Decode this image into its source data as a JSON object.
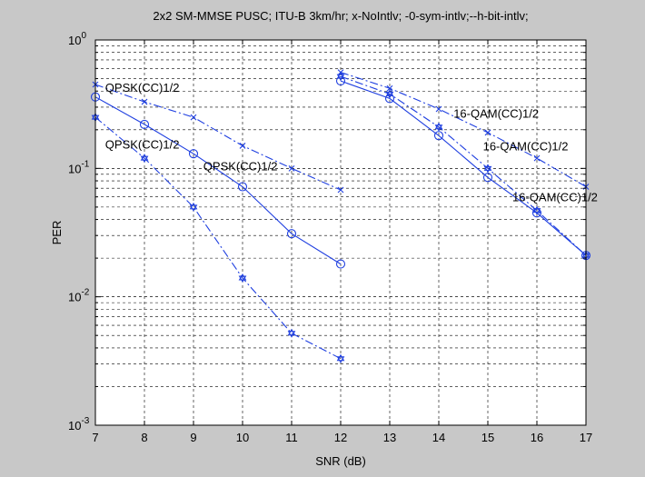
{
  "chart_data": {
    "type": "line",
    "title": "2x2 SM-MMSE PUSC; ITU-B 3km/hr; x-NoIntlv; -0-sym-intlv;--h-bit-intlv;",
    "xlabel": "SNR (dB)",
    "ylabel": "PER",
    "xlim": [
      7,
      17
    ],
    "ylim": [
      0.001,
      1
    ],
    "yscale": "log",
    "grid": true,
    "x_ticks": [
      "7",
      "8",
      "9",
      "10",
      "11",
      "12",
      "13",
      "14",
      "15",
      "16",
      "17"
    ],
    "y_ticks": [
      {
        "base": "10",
        "exp": "0",
        "value": 1
      },
      {
        "base": "10",
        "exp": "-1",
        "value": 0.1
      },
      {
        "base": "10",
        "exp": "-2",
        "value": 0.01
      },
      {
        "base": "10",
        "exp": "-3",
        "value": 0.001
      }
    ],
    "colors": {
      "series": "#1f3fe0",
      "axes": "#000000",
      "plot_bg": "#ffffff",
      "figure_bg": "#c8c8c8"
    },
    "series": [
      {
        "marker": "x",
        "dash": "dashdot",
        "x": [
          7,
          8,
          9,
          10,
          11,
          12
        ],
        "y": [
          0.45,
          0.33,
          0.25,
          0.15,
          0.1,
          0.068
        ]
      },
      {
        "marker": "o",
        "dash": "solid",
        "x": [
          7,
          8,
          9,
          10,
          11,
          12
        ],
        "y": [
          0.36,
          0.22,
          0.13,
          0.072,
          0.031,
          0.018
        ]
      },
      {
        "marker": "hex",
        "dash": "dashdot",
        "x": [
          7,
          8,
          9,
          10,
          11,
          12
        ],
        "y": [
          0.25,
          0.12,
          0.05,
          0.014,
          0.0052,
          0.0033
        ]
      },
      {
        "marker": "x",
        "dash": "dashdot",
        "x": [
          12,
          13,
          14,
          15,
          16,
          17
        ],
        "y": [
          0.56,
          0.42,
          0.29,
          0.19,
          0.12,
          0.072
        ]
      },
      {
        "marker": "o",
        "dash": "solid",
        "x": [
          12,
          13,
          14,
          15,
          16,
          17
        ],
        "y": [
          0.48,
          0.35,
          0.18,
          0.085,
          0.045,
          0.021
        ]
      },
      {
        "marker": "hex",
        "dash": "dashdot",
        "x": [
          12,
          13,
          14,
          15,
          16,
          17
        ],
        "y": [
          0.52,
          0.38,
          0.21,
          0.1,
          0.047,
          0.021
        ]
      }
    ],
    "annotations": [
      {
        "text": "QPSK(CC)1/2",
        "x": 7.2,
        "y": 0.43
      },
      {
        "text": "QPSK(CC)1/2",
        "x": 7.2,
        "y": 0.155
      },
      {
        "text": "QPSK(CC)1/2",
        "x": 9.2,
        "y": 0.105
      },
      {
        "text": "16-QAM(CC)1/2",
        "x": 14.3,
        "y": 0.27
      },
      {
        "text": "16-QAM(CC)1/2",
        "x": 14.9,
        "y": 0.15
      },
      {
        "text": "16-QAM(CC)1/2",
        "x": 15.5,
        "y": 0.06
      }
    ]
  }
}
